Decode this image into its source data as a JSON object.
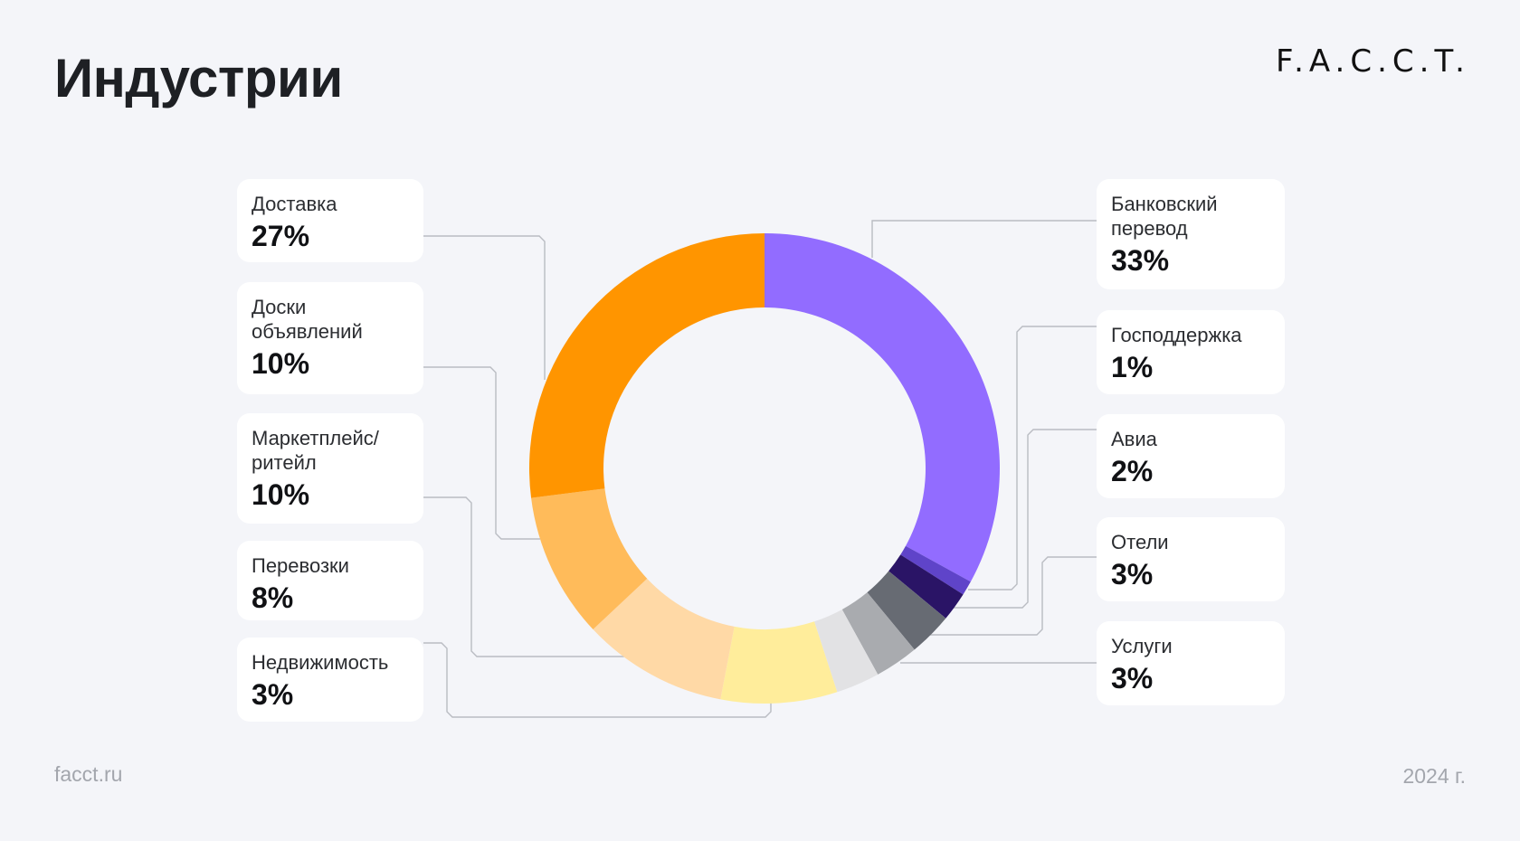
{
  "header": {
    "title": "Индустрии",
    "logo": "F.A.C.C.T."
  },
  "footer": {
    "site": "facct.ru",
    "year": "2024 г."
  },
  "chart_data": {
    "type": "pie",
    "title": "Индустрии",
    "categories": [
      "Банковский перевод",
      "Господдержка",
      "Авиа",
      "Отели",
      "Услуги",
      "Недвижимость",
      "Перевозки",
      "Маркетплейс/ритейл",
      "Доски объявлений",
      "Доставка"
    ],
    "values": [
      33,
      1,
      2,
      3,
      3,
      3,
      8,
      10,
      10,
      27
    ],
    "colors": [
      "#926cff",
      "#5f44c9",
      "#2a1466",
      "#676b73",
      "#a9abaf",
      "#e2e2e4",
      "#ffed9b",
      "#ffd9a6",
      "#ffbb5a",
      "#ff9500"
    ]
  },
  "labels": [
    {
      "name": "Банковский\nперевод",
      "value": "33%"
    },
    {
      "name": "Господдержка",
      "value": "1%"
    },
    {
      "name": "Авиа",
      "value": "2%"
    },
    {
      "name": "Отели",
      "value": "3%"
    },
    {
      "name": "Услуги",
      "value": "3%"
    },
    {
      "name": "Недвижимость",
      "value": "3%"
    },
    {
      "name": "Перевозки",
      "value": "8%"
    },
    {
      "name": "Маркетплейс/\nритейл",
      "value": "10%"
    },
    {
      "name": "Доски\nобъявлений",
      "value": "10%"
    },
    {
      "name": "Доставка",
      "value": "27%"
    }
  ]
}
